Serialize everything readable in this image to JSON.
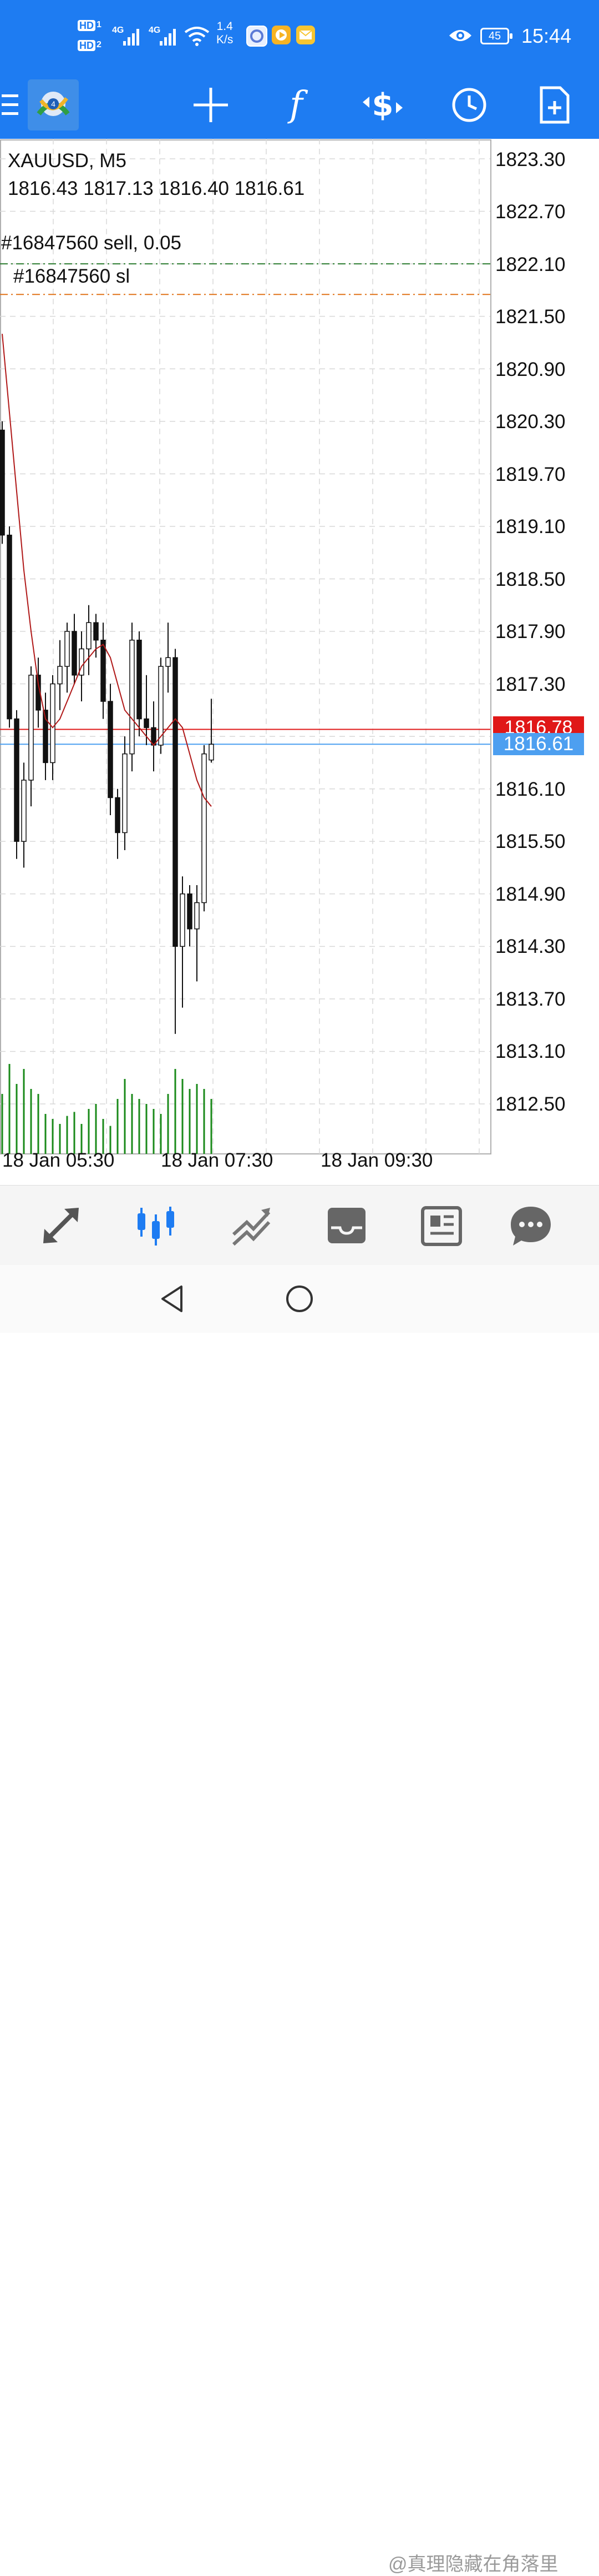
{
  "status_bar": {
    "hd1": "HD",
    "sim1": "1",
    "hd2": "HD",
    "sim2": "2",
    "net_type_1": "4G",
    "net_type_2": "4G",
    "net_speed_value": "1.4",
    "net_speed_unit": "K/s",
    "battery": "45",
    "time": "15:44",
    "icons": [
      "wifi-icon",
      "browser-icon",
      "video-app-icon",
      "mail-icon",
      "eye-icon"
    ]
  },
  "toolbar": {
    "menu_icon": "hamburger-icon",
    "logo_icon": "metatrader-logo-icon",
    "buttons": [
      "crosshair-icon",
      "indicator-f-icon",
      "trade-dollar-icon",
      "clock-icon",
      "new-document-icon"
    ]
  },
  "chart": {
    "symbol": "XAUUSD, M5",
    "ohlc": "1816.43 1817.13 1816.40 1816.61",
    "order_label": "#16847560 sell, 0.05",
    "sl_label": "#16847560 sl",
    "ask_price": "1816.78",
    "bid_price": "1816.61",
    "price_axis": [
      "1823.30",
      "1822.70",
      "1822.10",
      "1821.50",
      "1820.90",
      "1820.30",
      "1819.70",
      "1819.10",
      "1818.50",
      "1817.90",
      "1817.30",
      "1816.10",
      "1815.50",
      "1814.90",
      "1814.30",
      "1813.70",
      "1813.10",
      "1812.50"
    ],
    "time_axis": [
      "18 Jan 05:30",
      "18 Jan 07:30",
      "18 Jan 09:30"
    ],
    "colors": {
      "ask": "#e01818",
      "bid": "#4d9ff0",
      "ma": "#b01818",
      "volume": "#1a8a1a",
      "order_line": "#2e7d32",
      "sl_line": "#e0741a"
    }
  },
  "chart_data": {
    "type": "candlestick",
    "symbol": "XAUUSD",
    "timeframe": "M5",
    "ylim": [
      1812.2,
      1823.5
    ],
    "order_level": 1822.1,
    "sl_level": 1821.75,
    "ask": 1816.78,
    "bid": 1816.61,
    "candles": [
      {
        "o": 1820.2,
        "h": 1820.3,
        "l": 1818.9,
        "c": 1819.0
      },
      {
        "o": 1819.0,
        "h": 1819.1,
        "l": 1816.8,
        "c": 1816.9
      },
      {
        "o": 1816.9,
        "h": 1817.0,
        "l": 1815.3,
        "c": 1815.5
      },
      {
        "o": 1815.5,
        "h": 1816.4,
        "l": 1815.2,
        "c": 1816.2
      },
      {
        "o": 1816.2,
        "h": 1817.5,
        "l": 1815.9,
        "c": 1817.4
      },
      {
        "o": 1817.4,
        "h": 1817.6,
        "l": 1816.8,
        "c": 1817.0
      },
      {
        "o": 1817.0,
        "h": 1817.2,
        "l": 1816.2,
        "c": 1816.4
      },
      {
        "o": 1816.4,
        "h": 1817.4,
        "l": 1816.2,
        "c": 1817.3
      },
      {
        "o": 1817.3,
        "h": 1817.8,
        "l": 1817.0,
        "c": 1817.5
      },
      {
        "o": 1817.5,
        "h": 1818.0,
        "l": 1817.2,
        "c": 1817.9
      },
      {
        "o": 1817.9,
        "h": 1818.1,
        "l": 1817.3,
        "c": 1817.4
      },
      {
        "o": 1817.4,
        "h": 1817.9,
        "l": 1817.1,
        "c": 1817.7
      },
      {
        "o": 1817.7,
        "h": 1818.2,
        "l": 1817.4,
        "c": 1818.0
      },
      {
        "o": 1818.0,
        "h": 1818.1,
        "l": 1817.6,
        "c": 1817.8
      },
      {
        "o": 1817.8,
        "h": 1818.0,
        "l": 1816.9,
        "c": 1817.1
      },
      {
        "o": 1817.1,
        "h": 1817.3,
        "l": 1815.8,
        "c": 1816.0
      },
      {
        "o": 1816.0,
        "h": 1816.1,
        "l": 1815.3,
        "c": 1815.6
      },
      {
        "o": 1815.6,
        "h": 1816.7,
        "l": 1815.4,
        "c": 1816.5
      },
      {
        "o": 1816.5,
        "h": 1818.0,
        "l": 1816.3,
        "c": 1817.8
      },
      {
        "o": 1817.8,
        "h": 1817.9,
        "l": 1816.7,
        "c": 1816.9
      },
      {
        "o": 1816.9,
        "h": 1817.4,
        "l": 1816.6,
        "c": 1816.8
      },
      {
        "o": 1816.8,
        "h": 1817.1,
        "l": 1816.3,
        "c": 1816.6
      },
      {
        "o": 1816.6,
        "h": 1817.6,
        "l": 1816.5,
        "c": 1817.5
      },
      {
        "o": 1817.5,
        "h": 1818.0,
        "l": 1817.2,
        "c": 1817.6
      },
      {
        "o": 1817.6,
        "h": 1817.7,
        "l": 1813.3,
        "c": 1814.3
      },
      {
        "o": 1814.3,
        "h": 1815.1,
        "l": 1813.6,
        "c": 1814.9
      },
      {
        "o": 1814.9,
        "h": 1815.0,
        "l": 1814.3,
        "c": 1814.5
      },
      {
        "o": 1814.5,
        "h": 1815.0,
        "l": 1813.9,
        "c": 1814.8
      },
      {
        "o": 1814.8,
        "h": 1816.6,
        "l": 1814.7,
        "c": 1816.5
      },
      {
        "o": 1816.43,
        "h": 1817.13,
        "l": 1816.4,
        "c": 1816.61
      }
    ],
    "ma_series": [
      1821.3,
      1820.4,
      1819.5,
      1818.6,
      1817.9,
      1817.3,
      1816.9,
      1816.8,
      1816.9,
      1817.1,
      1817.3,
      1817.5,
      1817.6,
      1817.7,
      1817.75,
      1817.6,
      1817.3,
      1817.0,
      1816.9,
      1816.8,
      1816.7,
      1816.6,
      1816.7,
      1816.8,
      1816.9,
      1816.8,
      1816.5,
      1816.2,
      1816.0,
      1815.9
    ],
    "volumes": [
      60,
      90,
      70,
      85,
      65,
      60,
      40,
      35,
      30,
      38,
      42,
      30,
      45,
      50,
      35,
      28,
      55,
      75,
      60,
      55,
      50,
      45,
      40,
      60,
      85,
      75,
      65,
      70,
      65,
      55
    ]
  },
  "bottom_nav": {
    "buttons": [
      "quotes-arrows-icon",
      "chart-candles-icon",
      "trade-lines-icon",
      "history-inbox-icon",
      "news-icon",
      "chat-icon"
    ]
  },
  "system_nav": {
    "buttons": [
      "back-icon",
      "home-icon"
    ],
    "watermark": "@真理隐藏在角落里"
  }
}
